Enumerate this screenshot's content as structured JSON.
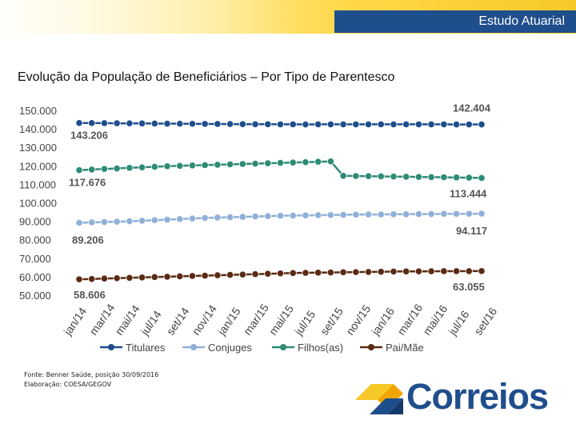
{
  "header": {
    "title": "Estudo Atuarial"
  },
  "page": {
    "title": "Evolução da População de Beneficiários – Por Tipo de Parentesco"
  },
  "chart_data": {
    "type": "line",
    "title": "Evolução da População de Beneficiários – Por Tipo de Parentesco",
    "xlabel": "",
    "ylabel": "",
    "ylim": [
      50000,
      150000
    ],
    "y_ticks": [
      "150.000",
      "140.000",
      "130.000",
      "120.000",
      "110.000",
      "100.000",
      "90.000",
      "80.000",
      "70.000",
      "60.000",
      "50.000"
    ],
    "y_tick_values": [
      150000,
      140000,
      130000,
      120000,
      110000,
      100000,
      90000,
      80000,
      70000,
      60000,
      50000
    ],
    "x_tick_labels": [
      "jan/14",
      "mar/14",
      "mai/14",
      "jul/14",
      "set/14",
      "nov/14",
      "jan/15",
      "mar/15",
      "mai/15",
      "jul/15",
      "set/15",
      "nov/15",
      "jan/16",
      "mar/16",
      "mai/16",
      "jul/16",
      "set/16"
    ],
    "x_points": 33,
    "series": [
      {
        "name": "Titulares",
        "color": "#1f4e8c",
        "values": [
          143206,
          143150,
          143100,
          143050,
          143000,
          142950,
          142900,
          142850,
          142800,
          142750,
          142700,
          142650,
          142600,
          142550,
          142500,
          142500,
          142450,
          142450,
          142400,
          142450,
          142450,
          142450,
          142450,
          142450,
          142450,
          142450,
          142450,
          142450,
          142450,
          142450,
          142400,
          142400,
          142404
        ],
        "first_label": "143.206",
        "last_label": "142.404"
      },
      {
        "name": "Conjuges",
        "color": "#8fb0d8",
        "values": [
          89206,
          89400,
          89600,
          89800,
          90000,
          90300,
          90600,
          90900,
          91200,
          91500,
          91800,
          92000,
          92200,
          92400,
          92600,
          92800,
          93000,
          93100,
          93200,
          93300,
          93400,
          93500,
          93600,
          93700,
          93700,
          93800,
          93800,
          93900,
          93900,
          94000,
          94000,
          94050,
          94117
        ],
        "first_label": "89.206",
        "last_label": "94.117"
      },
      {
        "name": "Filhos(as)",
        "color": "#2e8b75",
        "values": [
          117676,
          118000,
          118300,
          118600,
          118900,
          119200,
          119500,
          119800,
          120000,
          120200,
          120400,
          120600,
          120800,
          121000,
          121200,
          121400,
          121600,
          121800,
          122000,
          122200,
          122400,
          114600,
          114500,
          114400,
          114300,
          114200,
          114100,
          114000,
          113900,
          113800,
          113700,
          113600,
          113444
        ],
        "first_label": "117.676",
        "last_label": "113.444"
      },
      {
        "name": "Pai/Mãe",
        "color": "#5a2a14",
        "values": [
          58606,
          58800,
          59000,
          59200,
          59400,
          59600,
          59800,
          60000,
          60200,
          60400,
          60600,
          60800,
          61000,
          61200,
          61400,
          61600,
          61800,
          62000,
          62100,
          62200,
          62300,
          62400,
          62500,
          62600,
          62700,
          62800,
          62850,
          62900,
          62950,
          63000,
          63000,
          63030,
          63055
        ],
        "first_label": "58.606",
        "last_label": "63.055"
      }
    ]
  },
  "footer": {
    "source": "Fonte: Benner Saúde, posição 30/09/2016",
    "elaboration": "Elaboração: COESA/GEGOV"
  },
  "logo": {
    "text": "Correios",
    "brand_blue": "#1f4e8c",
    "brand_yellow": "#f7c928"
  }
}
